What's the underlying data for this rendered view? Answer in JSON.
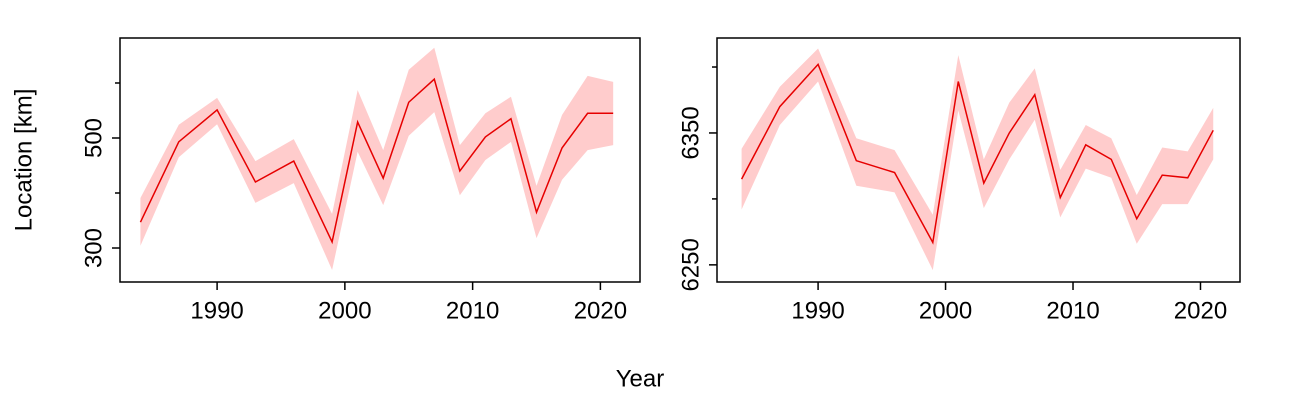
{
  "xlabel": "Year",
  "ylabel": "Location [km]",
  "chart_data": [
    {
      "type": "line",
      "color": "#e60000",
      "band_color": "#ffcccc",
      "x": [
        1984,
        1987,
        1990,
        1993,
        1996,
        1999,
        2001,
        2003,
        2005,
        2007,
        2009,
        2011,
        2013,
        2015,
        2017,
        2019,
        2021
      ],
      "values": [
        347,
        493,
        551,
        420,
        458,
        311,
        529,
        427,
        565,
        607,
        440,
        502,
        535,
        365,
        482,
        545,
        545
      ],
      "lower": [
        304,
        465,
        525,
        382,
        418,
        260,
        475,
        378,
        504,
        547,
        396,
        460,
        493,
        318,
        424,
        478,
        487
      ],
      "upper": [
        391,
        524,
        573,
        458,
        498,
        362,
        587,
        478,
        624,
        664,
        487,
        545,
        575,
        413,
        542,
        613,
        602
      ],
      "xlim": [
        1982.4,
        2023.1
      ],
      "xticks": [
        1990,
        2000,
        2010,
        2020
      ],
      "ylim": [
        238.2,
        681.8
      ],
      "yticks": [
        300,
        500
      ],
      "yminor_ticks": [
        400,
        600
      ]
    },
    {
      "type": "line",
      "color": "#e60000",
      "band_color": "#ffcccc",
      "x": [
        1984,
        1987,
        1990,
        1993,
        1996,
        1999,
        2001,
        2003,
        2005,
        2007,
        2009,
        2011,
        2013,
        2015,
        2017,
        2019,
        2021
      ],
      "values": [
        6315,
        6370,
        6402,
        6329,
        6320,
        6267,
        6389,
        6312,
        6350,
        6379,
        6301,
        6341,
        6330,
        6285,
        6318,
        6316,
        6352
      ],
      "lower": [
        6292,
        6356,
        6389,
        6310,
        6305,
        6246,
        6367,
        6293,
        6330,
        6360,
        6286,
        6323,
        6316,
        6266,
        6296,
        6296,
        6330
      ],
      "upper": [
        6338,
        6385,
        6414,
        6346,
        6337,
        6288,
        6409,
        6330,
        6373,
        6399,
        6322,
        6356,
        6346,
        6303,
        6339,
        6336,
        6369
      ],
      "xlim": [
        1982.07,
        2023.1
      ],
      "xticks": [
        1990,
        2000,
        2010,
        2020
      ],
      "ylim": [
        6237,
        6422
      ],
      "yticks": [
        6250,
        6350
      ],
      "yminor_ticks": [
        6300,
        6400
      ]
    }
  ]
}
